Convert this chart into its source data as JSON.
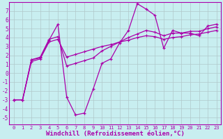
{
  "background_color": "#c8eef0",
  "grid_color": "#b0c8ca",
  "line_color": "#aa00aa",
  "xlabel": "Windchill (Refroidissement éolien,°C)",
  "xlabel_fontsize": 6.5,
  "ytick_vals": [
    -5,
    -4,
    -3,
    -2,
    -1,
    0,
    1,
    2,
    3,
    4,
    5,
    6,
    7
  ],
  "xtick_vals": [
    0,
    1,
    2,
    3,
    4,
    5,
    6,
    7,
    8,
    9,
    10,
    11,
    12,
    13,
    14,
    15,
    16,
    17,
    18,
    19,
    20,
    21,
    22,
    23
  ],
  "xlim": [
    -0.5,
    23.5
  ],
  "ylim": [
    -5.8,
    8.0
  ],
  "series1_x": [
    0,
    1,
    2,
    3,
    4,
    5,
    6,
    7,
    8,
    9,
    10,
    11,
    12,
    13,
    14,
    15,
    16,
    17,
    18,
    19,
    20,
    21,
    22,
    23
  ],
  "series1_y": [
    -3,
    -3,
    1.5,
    1.7,
    3.7,
    5.5,
    -2.7,
    -4.7,
    -4.5,
    -1.8,
    1.1,
    1.6,
    3.4,
    4.8,
    7.8,
    7.2,
    6.5,
    2.8,
    4.8,
    4.5,
    4.5,
    4.2,
    5.3,
    5.5
  ],
  "series2_x": [
    0,
    1,
    2,
    3,
    4,
    5,
    6,
    7,
    8,
    9,
    10,
    11,
    12,
    13,
    14,
    15,
    16,
    17,
    18,
    19,
    20,
    21,
    22,
    23
  ],
  "series2_y": [
    -3,
    -3,
    1.5,
    1.8,
    3.8,
    4.1,
    0.8,
    1.1,
    1.4,
    1.7,
    2.5,
    3.0,
    3.5,
    4.0,
    4.4,
    4.8,
    4.6,
    4.2,
    4.5,
    4.5,
    4.7,
    4.7,
    5.0,
    5.2
  ],
  "series3_x": [
    0,
    1,
    2,
    3,
    4,
    5,
    6,
    7,
    8,
    9,
    10,
    11,
    12,
    13,
    14,
    15,
    16,
    17,
    18,
    19,
    20,
    21,
    22,
    23
  ],
  "series3_y": [
    -3,
    -3,
    1.3,
    1.6,
    3.5,
    3.8,
    1.8,
    2.1,
    2.4,
    2.7,
    3.0,
    3.2,
    3.5,
    3.7,
    4.0,
    4.2,
    4.1,
    3.8,
    4.0,
    4.1,
    4.3,
    4.4,
    4.6,
    4.8
  ]
}
